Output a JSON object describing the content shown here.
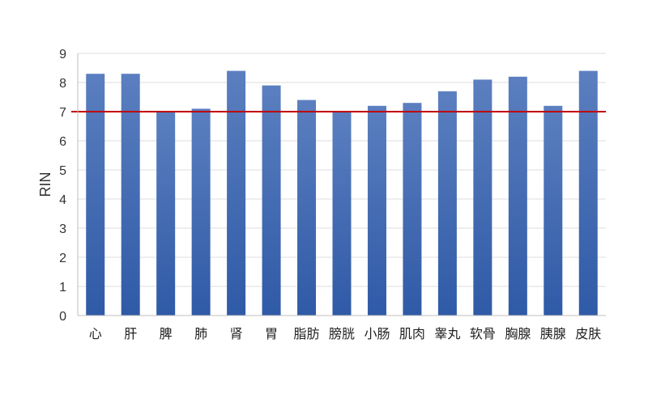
{
  "chart_data": {
    "type": "bar",
    "categories": [
      "心",
      "肝",
      "脾",
      "肺",
      "肾",
      "胃",
      "脂肪",
      "膀胱",
      "小肠",
      "肌肉",
      "睾丸",
      "软骨",
      "胸腺",
      "胰腺",
      "皮肤"
    ],
    "values": [
      8.3,
      8.3,
      7.0,
      7.1,
      8.4,
      7.9,
      7.4,
      7.0,
      7.2,
      7.3,
      7.7,
      8.1,
      8.2,
      7.2,
      8.4
    ],
    "title": "",
    "xlabel": "",
    "ylabel": "RIN",
    "ylim": [
      0,
      9
    ],
    "yticks": [
      0,
      1,
      2,
      3,
      4,
      5,
      6,
      7,
      8,
      9
    ],
    "reference_line": {
      "value": 7,
      "color": "#c00000"
    },
    "bar_color_top": "#5b7fc0",
    "bar_color_bottom": "#2f5aa6",
    "grid": true,
    "gridline_color": "#dcdcdc",
    "legend": "none"
  }
}
